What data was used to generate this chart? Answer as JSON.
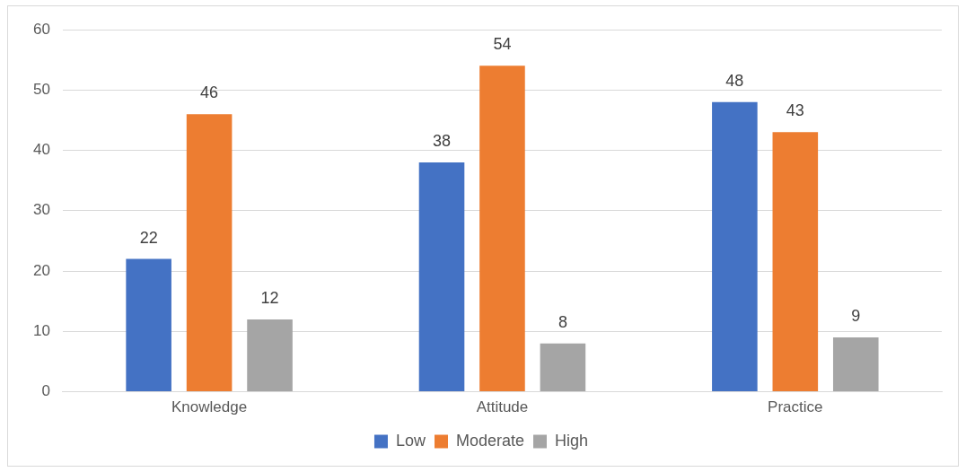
{
  "chart_data": {
    "type": "bar",
    "categories": [
      "Knowledge",
      "Attitude",
      "Practice"
    ],
    "series": [
      {
        "name": "Low",
        "color": "#4472c4",
        "values": [
          22,
          38,
          48
        ]
      },
      {
        "name": "Moderate",
        "color": "#ed7d31",
        "values": [
          46,
          54,
          43
        ]
      },
      {
        "name": "High",
        "color": "#a5a5a5",
        "values": [
          12,
          8,
          9
        ]
      }
    ],
    "ylim": [
      0,
      60
    ],
    "yticks": [
      0,
      10,
      20,
      30,
      40,
      50,
      60
    ],
    "grid": "y",
    "legend": "bottom",
    "data_labels": true
  }
}
